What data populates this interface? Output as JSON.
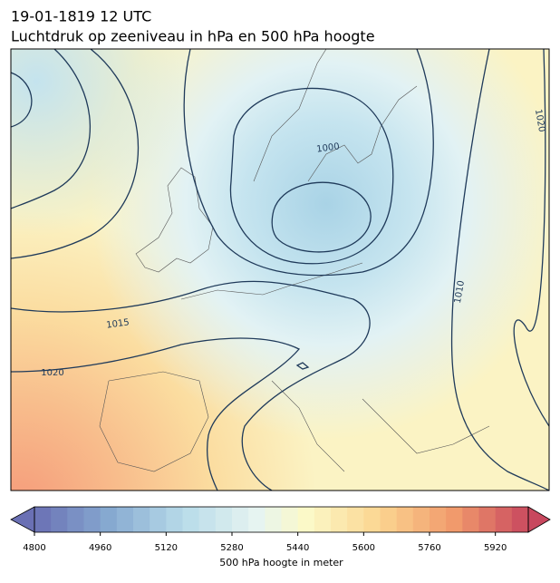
{
  "header": {
    "title": "19-01-1819 12 UTC",
    "subtitle": "Luchtdruk op zeeniveau in hPa en 500 hPa hoogte"
  },
  "contour_labels": [
    1000,
    1010,
    1015,
    1020,
    1020
  ],
  "colorbar": {
    "vmin": 4800,
    "vmax": 6000,
    "step": 40,
    "ticks": [
      4800,
      4960,
      5120,
      5280,
      5440,
      5600,
      5760,
      5920
    ],
    "label": "500 hPa hoogte in meter"
  }
}
